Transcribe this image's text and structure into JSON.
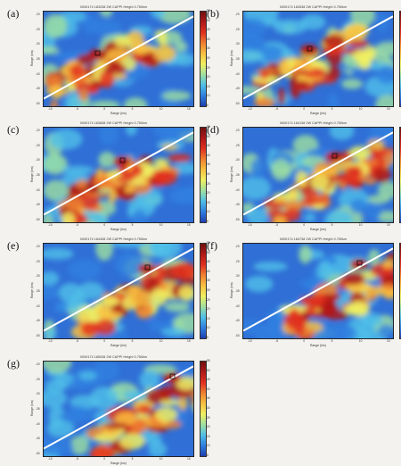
{
  "figure": {
    "panels": [
      {
        "letter": "(a)",
        "title": "0000174 183238  2W CAPPI  Height 0.750km",
        "colors": {
          "c": "#2f6fd6"
        }
      },
      {
        "letter": "(b)",
        "title": "0000174 183538  2W CAPPI  Height 0.750km",
        "colors": {
          "c": "#2f6fd6"
        }
      },
      {
        "letter": "(c)",
        "title": "0000174 183838  2W CAPPI  Height 0.750km",
        "colors": {
          "c": "#2f6fd6"
        }
      },
      {
        "letter": "(d)",
        "title": "0000174 184138  2W CAPPI  Height 0.750km",
        "colors": {
          "c": "#2f6fd6"
        }
      },
      {
        "letter": "(e)",
        "title": "0000174 184438  2W CAPPI  Height 0.750km",
        "colors": {
          "c": "#2f6fd6"
        }
      },
      {
        "letter": "(f)",
        "title": "0000174 184738  2W CAPPI  Height 0.750km",
        "colors": {
          "c": "#2f6fd6"
        }
      },
      {
        "letter": "(g)",
        "title": "0000174 185038  2W CAPPI  Height 0.750km",
        "colors": {
          "c": "#2f6fd6"
        }
      }
    ],
    "xlabel": "Range (km)",
    "ylabel": "Range (km)",
    "x_ticks": [
      "-10",
      "-5",
      "0",
      "5",
      "10",
      "15"
    ],
    "y_ticks": [
      "-20",
      "-25",
      "-30",
      "-35",
      "-40",
      "-45",
      "-50"
    ],
    "colorbar_ticks": [
      "55",
      "50",
      "45",
      "40",
      "35",
      "30",
      "25",
      "20",
      "15",
      "10",
      "5"
    ],
    "colormap": [
      "#1f3fb0",
      "#2f7fe0",
      "#4fbfe8",
      "#9fe0a0",
      "#f0f060",
      "#f8c040",
      "#f08030",
      "#e03020",
      "#b01818",
      "#701010"
    ]
  }
}
